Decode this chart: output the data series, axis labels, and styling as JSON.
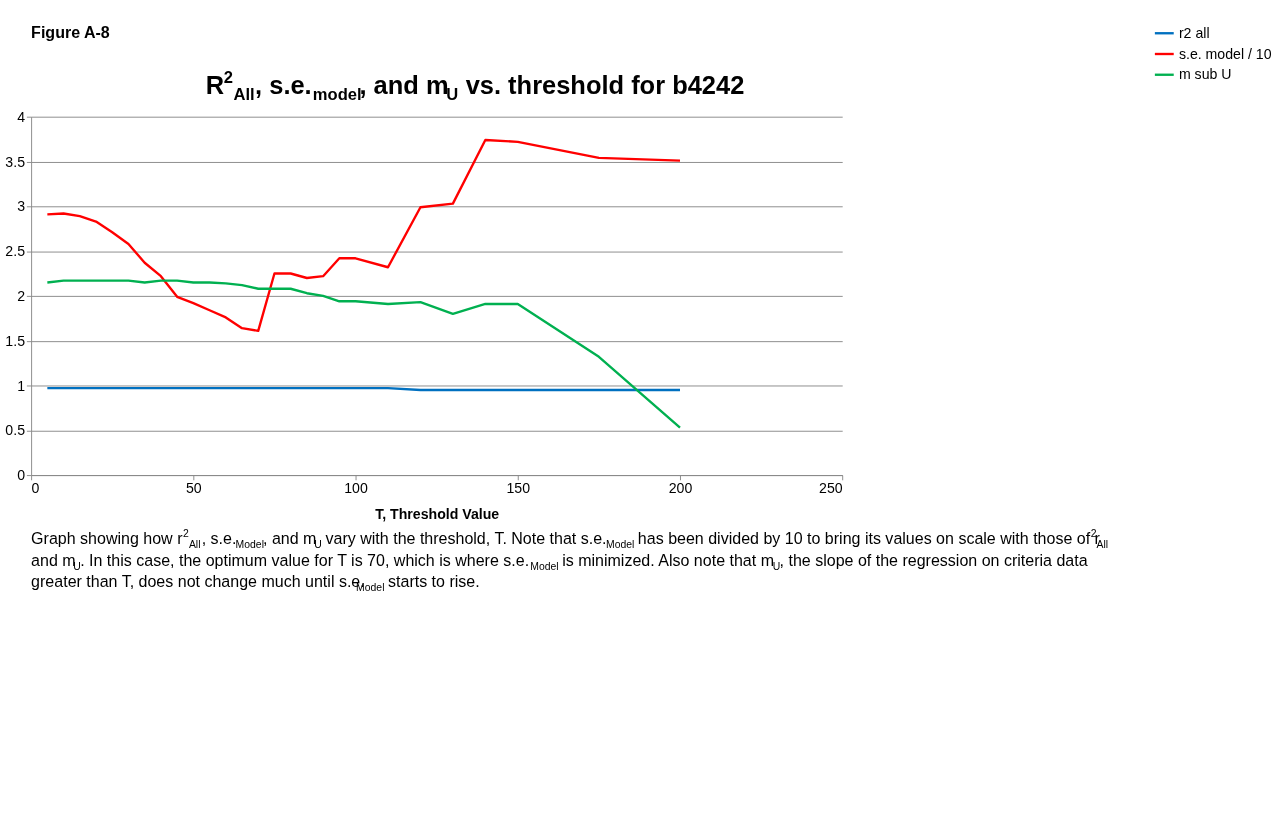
{
  "chart_data": {
    "type": "line",
    "title": "R$^{2}$$_{All}$, s.e.$_{model}$, and m$_{U}$ vs. threshold for b4242",
    "xlabel": "T, Threshold Value",
    "x": [
      5,
      10,
      15,
      20,
      25,
      30,
      35,
      40,
      45,
      50,
      55,
      60,
      65,
      70,
      75,
      80,
      85,
      90,
      95,
      100,
      110,
      120,
      130,
      140,
      150,
      175,
      200
    ],
    "series": [
      {
        "name": "r2 all",
        "color": "#0070c0",
        "values": [
          0.97,
          0.97,
          0.97,
          0.97,
          0.97,
          0.97,
          0.97,
          0.97,
          0.97,
          0.97,
          0.97,
          0.97,
          0.97,
          0.97,
          0.97,
          0.97,
          0.97,
          0.97,
          0.97,
          0.97,
          0.97,
          0.95,
          0.95,
          0.95,
          0.95,
          0.95,
          0.95
        ]
      },
      {
        "name": "s.e. model / 10",
        "color": "#ff0000",
        "values": [
          2.91,
          2.92,
          2.89,
          2.83,
          2.71,
          2.58,
          2.37,
          2.22,
          1.99,
          1.92,
          1.84,
          1.76,
          1.64,
          1.61,
          2.25,
          2.25,
          2.2,
          2.22,
          2.42,
          2.42,
          2.32,
          2.99,
          3.03,
          3.74,
          3.72,
          3.54,
          3.51
        ]
      },
      {
        "name": "m sub U",
        "color": "#00b050",
        "values": [
          2.15,
          2.17,
          2.17,
          2.17,
          2.17,
          2.17,
          2.15,
          2.17,
          2.17,
          2.15,
          2.15,
          2.14,
          2.12,
          2.08,
          2.08,
          2.08,
          2.03,
          2.0,
          1.94,
          1.94,
          1.91,
          1.93,
          1.8,
          1.91,
          1.91,
          1.32,
          0.53
        ]
      }
    ],
    "xlim": [
      0,
      250
    ],
    "xticks": [
      0,
      50,
      100,
      150,
      200,
      250
    ],
    "ylim": [
      0,
      4
    ],
    "yticks": [
      0,
      0.5,
      1,
      1.5,
      2,
      2.5,
      3,
      3.5,
      4
    ],
    "grid": "y",
    "legend": "right",
    "line_style": "solid",
    "annotations": [
      "Figure A-8",
      "Graph showing how r$^{2}$$_{All}$, s.e.$_{Model}$, and m$_{U}$ vary with the threshold, T. Note that s.e.$_{Model}$ has been divided by 10 to bring its values on scale with those of r$^{2}$$_{All}$ and m$_{U}$. In this case, the optimum value for T is 70, which is where s.e.$_{Model}$ is minimized. Also note that m$_{U}$, the slope of the regression on criteria data greater than T, does not change much until s.e.$_{Model}$ starts to rise."
    ]
  }
}
